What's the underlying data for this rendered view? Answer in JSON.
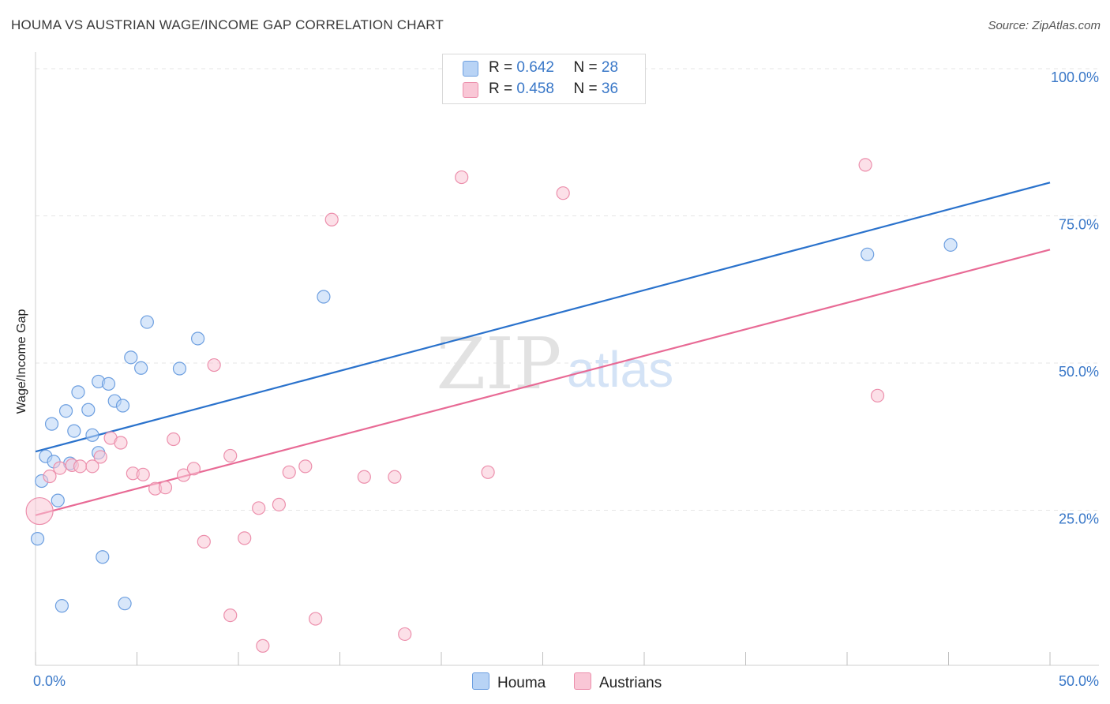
{
  "title": "HOUMA VS AUSTRIAN WAGE/INCOME GAP CORRELATION CHART",
  "source": "Source: ZipAtlas.com",
  "watermark": {
    "zip": "ZIP",
    "atlas": "atlas"
  },
  "stats": [
    {
      "series": "Houma",
      "r_label": "R =",
      "r": "0.642",
      "n_label": "N =",
      "n": "28",
      "swatch_fill": "#b8d3f5",
      "swatch_stroke": "#6d9fe0"
    },
    {
      "series": "Austrians",
      "r_label": "R =",
      "r": "0.458",
      "n_label": "N =",
      "n": "36",
      "swatch_fill": "#f9c7d6",
      "swatch_stroke": "#ec8fac"
    }
  ],
  "legend": [
    {
      "label": "Houma",
      "fill": "#b8d3f5",
      "stroke": "#6d9fe0"
    },
    {
      "label": "Austrians",
      "fill": "#f9c7d6",
      "stroke": "#ec8fac"
    }
  ],
  "chart_data": {
    "type": "scatter",
    "title": "HOUMA VS AUSTRIAN WAGE/INCOME GAP CORRELATION CHART",
    "xlabel": "",
    "ylabel": "Wage/Income Gap",
    "xlim": [
      0,
      50
    ],
    "ylim": [
      0,
      100
    ],
    "x_tick_labels": [
      {
        "value": 0,
        "label": "0.0%"
      },
      {
        "value": 50,
        "label": "50.0%"
      }
    ],
    "y_tick_labels": [
      {
        "value": 25,
        "label": "25.0%"
      },
      {
        "value": 50,
        "label": "50.0%"
      },
      {
        "value": 75,
        "label": "75.0%"
      },
      {
        "value": 100,
        "label": "100.0%"
      }
    ],
    "grid": true,
    "series": [
      {
        "name": "Houma",
        "color": "#6d9fe0",
        "fill": "#b8d3f5",
        "line_color": "#2a72cc",
        "trend": {
          "x": [
            0,
            50
          ],
          "y": [
            36.3,
            82.0
          ]
        },
        "points": [
          {
            "x": 0.1,
            "y": 21.5
          },
          {
            "x": 0.3,
            "y": 31.3
          },
          {
            "x": 0.5,
            "y": 35.5
          },
          {
            "x": 0.8,
            "y": 41.0
          },
          {
            "x": 0.9,
            "y": 34.6
          },
          {
            "x": 1.1,
            "y": 28.0
          },
          {
            "x": 1.3,
            "y": 10.1
          },
          {
            "x": 1.5,
            "y": 43.2
          },
          {
            "x": 1.7,
            "y": 34.3
          },
          {
            "x": 1.9,
            "y": 39.8
          },
          {
            "x": 2.1,
            "y": 46.4
          },
          {
            "x": 2.6,
            "y": 43.4
          },
          {
            "x": 2.8,
            "y": 39.1
          },
          {
            "x": 3.1,
            "y": 36.1
          },
          {
            "x": 3.1,
            "y": 48.2
          },
          {
            "x": 3.3,
            "y": 18.4
          },
          {
            "x": 3.6,
            "y": 47.8
          },
          {
            "x": 3.9,
            "y": 44.9
          },
          {
            "x": 4.3,
            "y": 44.1
          },
          {
            "x": 4.4,
            "y": 10.5
          },
          {
            "x": 4.7,
            "y": 52.3
          },
          {
            "x": 5.2,
            "y": 50.5
          },
          {
            "x": 5.5,
            "y": 58.3
          },
          {
            "x": 7.1,
            "y": 50.4
          },
          {
            "x": 8.0,
            "y": 55.5
          },
          {
            "x": 14.2,
            "y": 62.6
          },
          {
            "x": 41.0,
            "y": 69.8
          },
          {
            "x": 45.1,
            "y": 71.4
          }
        ]
      },
      {
        "name": "Austrians",
        "color": "#ec8fac",
        "fill": "#f9c7d6",
        "line_color": "#e86a95",
        "trend": {
          "x": [
            0,
            50
          ],
          "y": [
            25.5,
            70.6
          ]
        },
        "points": [
          {
            "x": 0.2,
            "y": 26.2,
            "size": "large"
          },
          {
            "x": 0.7,
            "y": 32.1
          },
          {
            "x": 1.2,
            "y": 33.5
          },
          {
            "x": 1.8,
            "y": 34.0
          },
          {
            "x": 2.2,
            "y": 33.8
          },
          {
            "x": 2.8,
            "y": 33.8
          },
          {
            "x": 3.2,
            "y": 35.4
          },
          {
            "x": 3.7,
            "y": 38.6
          },
          {
            "x": 4.2,
            "y": 37.8
          },
          {
            "x": 4.8,
            "y": 32.6
          },
          {
            "x": 5.3,
            "y": 32.4
          },
          {
            "x": 5.9,
            "y": 30.0
          },
          {
            "x": 6.4,
            "y": 30.2
          },
          {
            "x": 6.8,
            "y": 38.4
          },
          {
            "x": 7.3,
            "y": 32.3
          },
          {
            "x": 7.8,
            "y": 33.4
          },
          {
            "x": 8.3,
            "y": 21.0
          },
          {
            "x": 8.8,
            "y": 51.0
          },
          {
            "x": 9.6,
            "y": 8.5
          },
          {
            "x": 9.6,
            "y": 35.6
          },
          {
            "x": 10.3,
            "y": 21.6
          },
          {
            "x": 11.0,
            "y": 26.7
          },
          {
            "x": 11.2,
            "y": 3.3
          },
          {
            "x": 12.0,
            "y": 27.3
          },
          {
            "x": 12.5,
            "y": 32.8
          },
          {
            "x": 13.3,
            "y": 33.8
          },
          {
            "x": 13.8,
            "y": 7.9
          },
          {
            "x": 14.6,
            "y": 75.7
          },
          {
            "x": 16.2,
            "y": 32.0
          },
          {
            "x": 17.7,
            "y": 32.0
          },
          {
            "x": 18.2,
            "y": 5.3
          },
          {
            "x": 21.0,
            "y": 82.9
          },
          {
            "x": 22.3,
            "y": 32.8
          },
          {
            "x": 26.0,
            "y": 80.2
          },
          {
            "x": 40.9,
            "y": 85.0
          },
          {
            "x": 41.5,
            "y": 45.8
          }
        ]
      }
    ]
  }
}
